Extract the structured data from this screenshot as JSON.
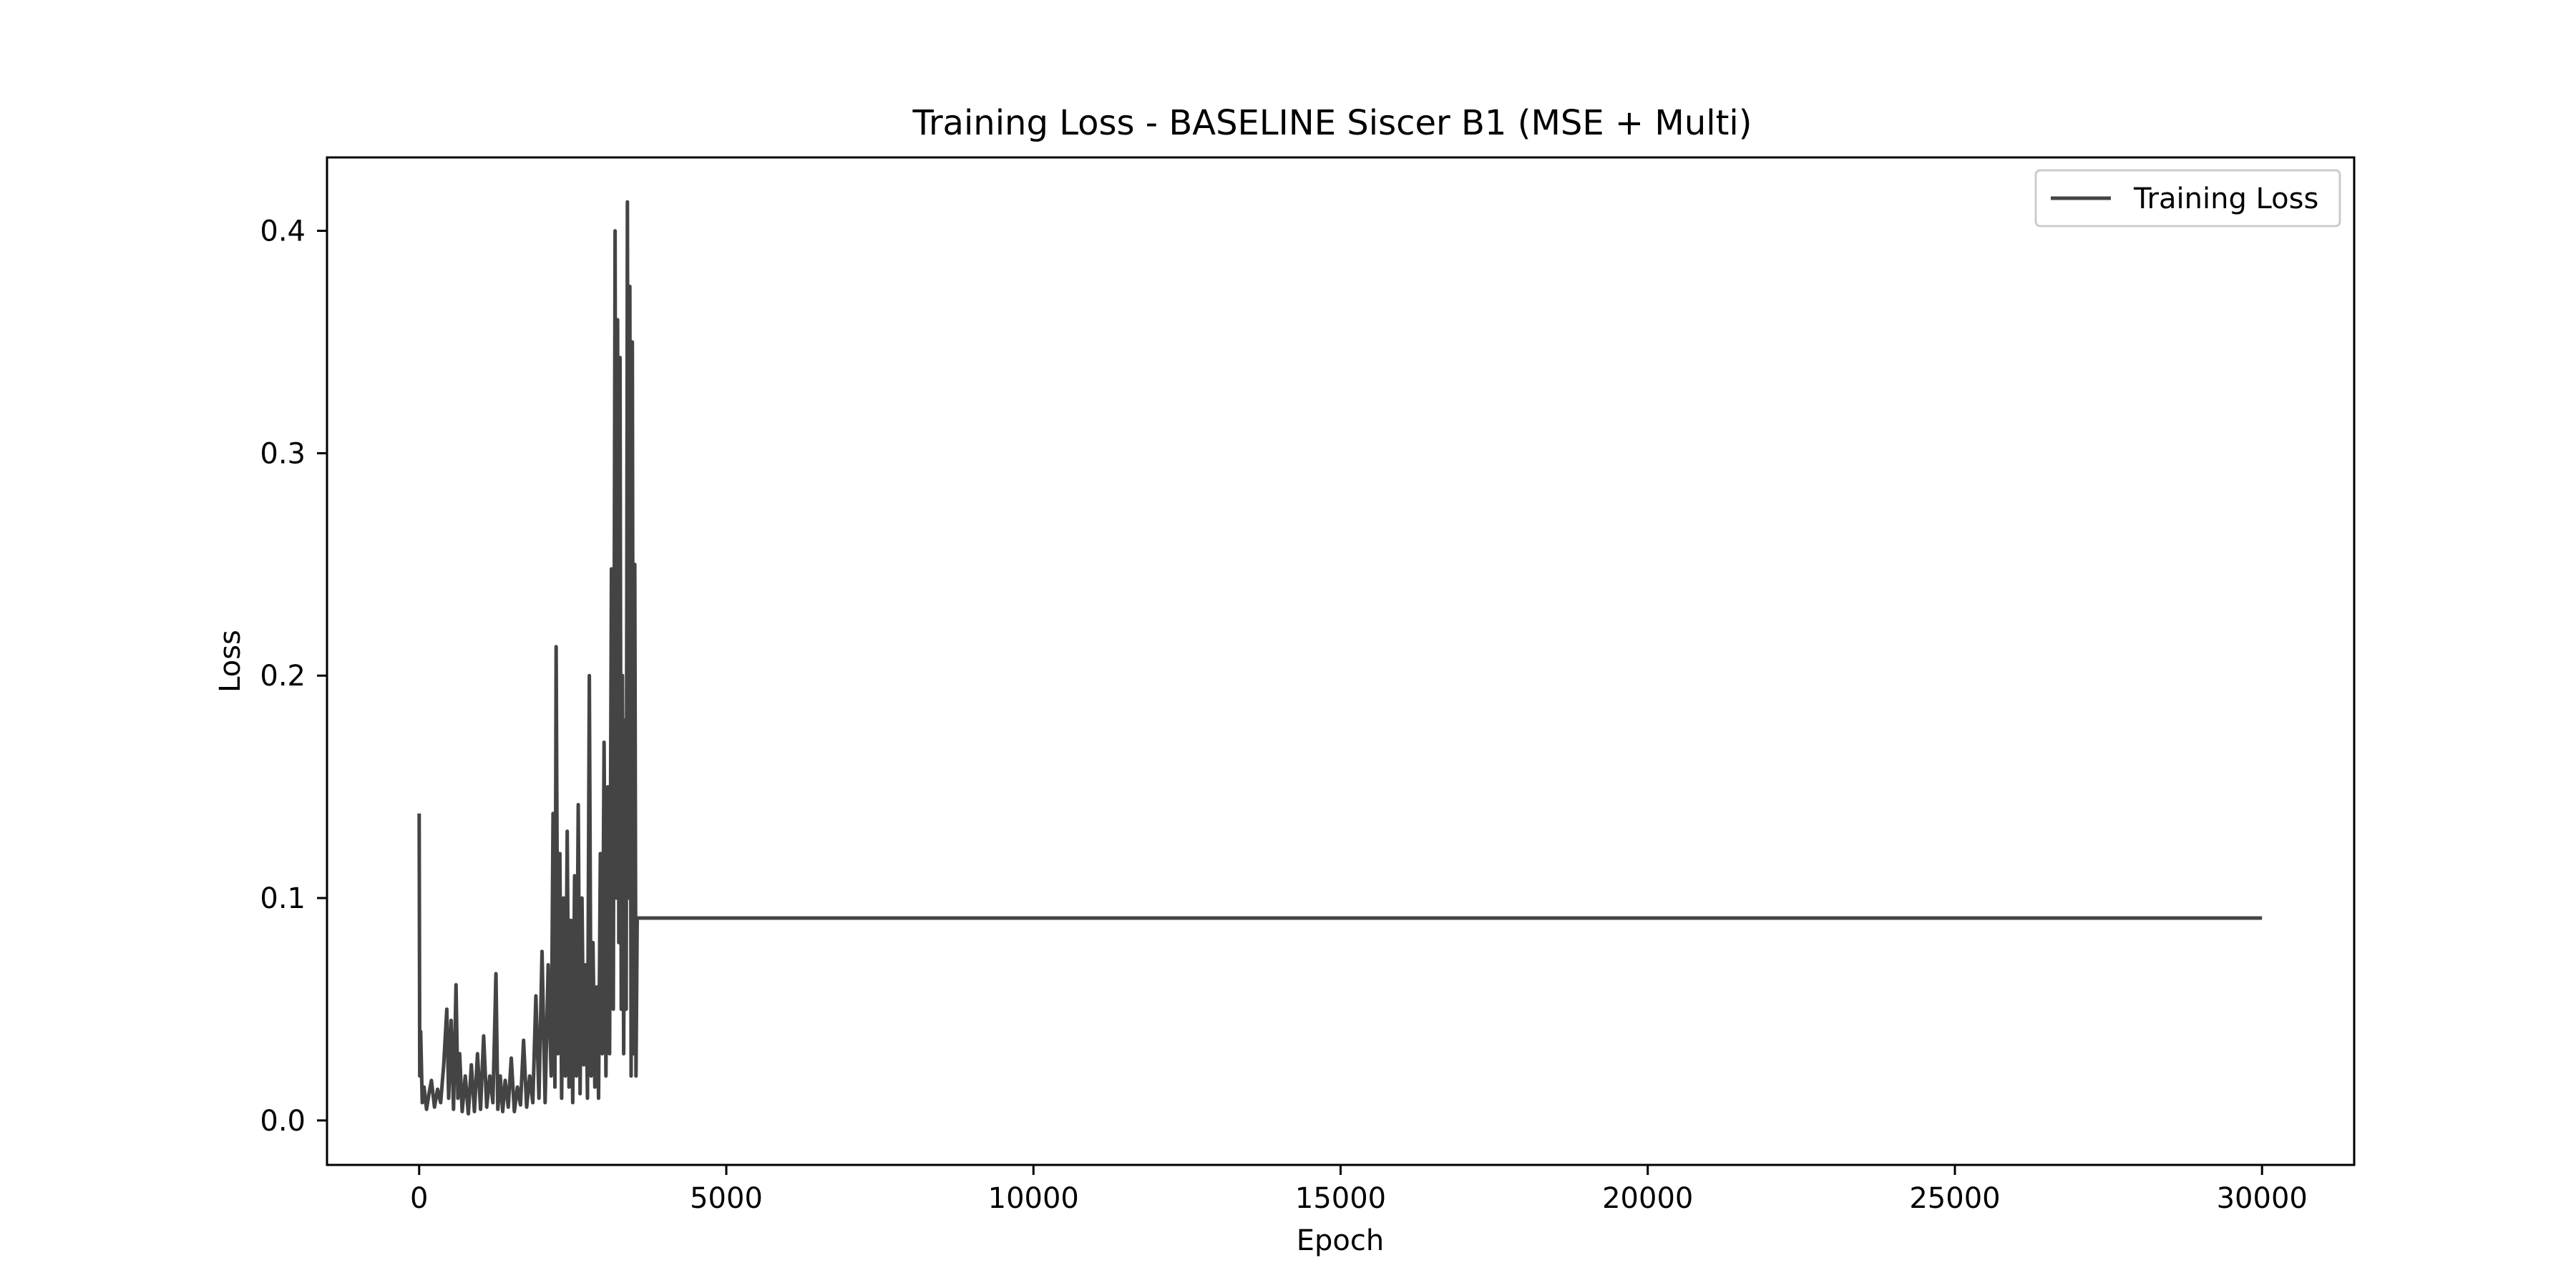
{
  "chart_data": {
    "type": "line",
    "title": "Training Loss - BASELINE Siscer B1 (MSE + Multi)",
    "xlabel": "Epoch",
    "ylabel": "Loss",
    "xlim": [
      -1500,
      31500
    ],
    "ylim": [
      -0.02,
      0.433
    ],
    "xticks": [
      0,
      5000,
      10000,
      15000,
      20000,
      25000,
      30000
    ],
    "xtick_labels": [
      "0",
      "5000",
      "10000",
      "15000",
      "20000",
      "25000",
      "30000"
    ],
    "yticks": [
      0.0,
      0.1,
      0.2,
      0.3,
      0.4
    ],
    "ytick_labels": [
      "0.0",
      "0.1",
      "0.2",
      "0.3",
      "0.4"
    ],
    "grid": false,
    "legend": {
      "position": "top-right",
      "entries": [
        "Training Loss"
      ]
    },
    "series": [
      {
        "name": "Training Loss",
        "color": "#444444",
        "x": [
          0,
          10,
          25,
          50,
          80,
          120,
          160,
          200,
          250,
          300,
          350,
          400,
          450,
          480,
          520,
          560,
          600,
          630,
          660,
          700,
          750,
          800,
          850,
          900,
          950,
          1000,
          1050,
          1100,
          1150,
          1200,
          1250,
          1280,
          1320,
          1360,
          1400,
          1450,
          1500,
          1550,
          1600,
          1650,
          1700,
          1750,
          1800,
          1850,
          1900,
          1950,
          2000,
          2050,
          2100,
          2150,
          2180,
          2210,
          2230,
          2260,
          2290,
          2320,
          2350,
          2380,
          2410,
          2440,
          2470,
          2500,
          2530,
          2560,
          2590,
          2620,
          2650,
          2680,
          2710,
          2740,
          2770,
          2800,
          2830,
          2860,
          2890,
          2920,
          2950,
          2980,
          3010,
          3040,
          3070,
          3100,
          3130,
          3160,
          3190,
          3210,
          3230,
          3250,
          3270,
          3290,
          3310,
          3330,
          3350,
          3370,
          3390,
          3410,
          3430,
          3450,
          3470,
          3490,
          3510,
          3530,
          3550,
          3600,
          5000,
          10000,
          15000,
          20000,
          25000,
          30000
        ],
        "y": [
          0.138,
          0.02,
          0.04,
          0.008,
          0.015,
          0.005,
          0.012,
          0.018,
          0.006,
          0.014,
          0.008,
          0.025,
          0.05,
          0.01,
          0.045,
          0.005,
          0.061,
          0.01,
          0.03,
          0.004,
          0.02,
          0.003,
          0.025,
          0.004,
          0.03,
          0.005,
          0.038,
          0.006,
          0.02,
          0.008,
          0.066,
          0.005,
          0.02,
          0.004,
          0.018,
          0.006,
          0.028,
          0.004,
          0.015,
          0.007,
          0.036,
          0.006,
          0.02,
          0.008,
          0.056,
          0.01,
          0.076,
          0.008,
          0.07,
          0.02,
          0.138,
          0.015,
          0.213,
          0.03,
          0.12,
          0.01,
          0.1,
          0.02,
          0.13,
          0.015,
          0.09,
          0.008,
          0.11,
          0.02,
          0.142,
          0.012,
          0.1,
          0.025,
          0.07,
          0.01,
          0.2,
          0.02,
          0.08,
          0.015,
          0.06,
          0.01,
          0.12,
          0.03,
          0.17,
          0.02,
          0.15,
          0.03,
          0.248,
          0.05,
          0.4,
          0.1,
          0.36,
          0.08,
          0.343,
          0.05,
          0.2,
          0.03,
          0.18,
          0.05,
          0.413,
          0.1,
          0.375,
          0.02,
          0.35,
          0.03,
          0.25,
          0.02,
          0.091,
          0.091,
          0.091,
          0.091,
          0.091,
          0.091,
          0.091,
          0.091
        ]
      }
    ]
  }
}
